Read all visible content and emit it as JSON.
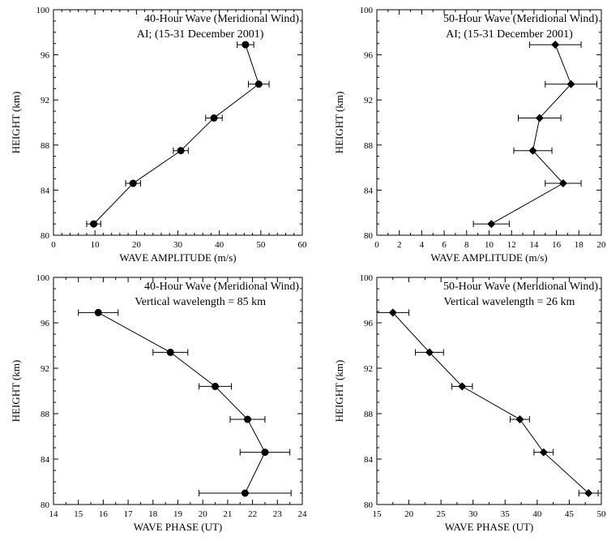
{
  "chart_data": [
    {
      "type": "scatter",
      "title": "40-Hour Wave  (Meridional Wind)",
      "subtitle": "AI;  (15-31 December 2001)",
      "xlabel": "WAVE  AMPLITUDE  (m/s)",
      "ylabel": "HEIGHT  (km)",
      "xlim": [
        0,
        60
      ],
      "ylim": [
        80,
        100
      ],
      "x_ticks": [
        0,
        10,
        20,
        30,
        40,
        50,
        60
      ],
      "y_ticks": [
        80,
        84,
        88,
        92,
        96,
        100
      ],
      "marker": "circle",
      "grid": false,
      "points": [
        {
          "x": 9.7,
          "y": 81.0,
          "err": 1.7
        },
        {
          "x": 19.2,
          "y": 84.6,
          "err": 1.8
        },
        {
          "x": 30.7,
          "y": 87.5,
          "err": 1.8
        },
        {
          "x": 38.7,
          "y": 90.4,
          "err": 2.0
        },
        {
          "x": 49.5,
          "y": 93.4,
          "err": 2.5
        },
        {
          "x": 46.3,
          "y": 96.9,
          "err": 2.0
        }
      ]
    },
    {
      "type": "scatter",
      "title": "50-Hour Wave  (Meridional Wind)",
      "subtitle": "AI;  (15-31 December 2001)",
      "xlabel": "WAVE  AMPLITUDE  (m/s)",
      "ylabel": "HEIGHT  (km)",
      "xlim": [
        0,
        20
      ],
      "ylim": [
        80,
        100
      ],
      "x_ticks": [
        0,
        2,
        4,
        6,
        8,
        10,
        12,
        14,
        16,
        18,
        20
      ],
      "y_ticks": [
        80,
        84,
        88,
        92,
        96,
        100
      ],
      "marker": "diamond",
      "grid": false,
      "points": [
        {
          "x": 10.2,
          "y": 81.0,
          "err": 1.6
        },
        {
          "x": 16.6,
          "y": 84.6,
          "err": 1.6
        },
        {
          "x": 13.9,
          "y": 87.5,
          "err": 1.7
        },
        {
          "x": 14.5,
          "y": 90.4,
          "err": 1.9
        },
        {
          "x": 17.3,
          "y": 93.4,
          "err": 2.3
        },
        {
          "x": 15.9,
          "y": 96.9,
          "err": 2.3
        }
      ]
    },
    {
      "type": "scatter",
      "title": "40-Hour Wave  (Meridional Wind)",
      "subtitle": "Vertical wavelength = 85 km",
      "xlabel": "WAVE  PHASE  (UT)",
      "ylabel": "HEIGHT  (km)",
      "xlim": [
        14,
        24
      ],
      "ylim": [
        80,
        100
      ],
      "x_ticks": [
        14,
        15,
        16,
        17,
        18,
        19,
        20,
        21,
        22,
        23,
        24
      ],
      "y_ticks": [
        80,
        84,
        88,
        92,
        96,
        100
      ],
      "marker": "circle",
      "grid": false,
      "points": [
        {
          "x": 21.7,
          "y": 81.0,
          "err": 1.85
        },
        {
          "x": 22.5,
          "y": 84.6,
          "err": 1.0
        },
        {
          "x": 21.8,
          "y": 87.5,
          "err": 0.7
        },
        {
          "x": 20.5,
          "y": 90.4,
          "err": 0.65
        },
        {
          "x": 18.7,
          "y": 93.4,
          "err": 0.7
        },
        {
          "x": 15.8,
          "y": 96.9,
          "err": 0.8
        }
      ]
    },
    {
      "type": "scatter",
      "title": "50-Hour Wave  (Meridional Wind)",
      "subtitle": "Vertical wavelength = 26 km",
      "xlabel": "WAVE  PHASE  (UT)",
      "ylabel": "HEIGHT  (km)",
      "xlim": [
        15,
        50
      ],
      "ylim": [
        80,
        100
      ],
      "x_ticks": [
        15,
        20,
        25,
        30,
        35,
        40,
        45,
        50
      ],
      "y_ticks": [
        80,
        84,
        88,
        92,
        96,
        100
      ],
      "marker": "diamond",
      "grid": false,
      "points": [
        {
          "x": 48.0,
          "y": 81.0,
          "err": 1.5
        },
        {
          "x": 41.0,
          "y": 84.6,
          "err": 1.5
        },
        {
          "x": 37.3,
          "y": 87.5,
          "err": 1.5
        },
        {
          "x": 28.3,
          "y": 90.4,
          "err": 1.6
        },
        {
          "x": 23.2,
          "y": 93.4,
          "err": 2.2
        },
        {
          "x": 17.5,
          "y": 96.9,
          "err": 2.5
        }
      ]
    }
  ]
}
